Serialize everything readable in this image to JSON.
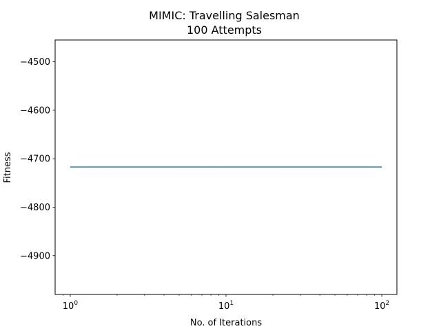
{
  "chart_data": {
    "type": "line",
    "title": "MIMIC: Travelling Salesman",
    "subtitle": "100 Attempts",
    "xlabel": "No. of Iterations",
    "ylabel": "Fitness",
    "xscale": "log",
    "xlim": [
      0.8,
      125
    ],
    "ylim": [
      -4980,
      -4455
    ],
    "xticks": [
      {
        "value": 1,
        "base": "10",
        "exp": "0"
      },
      {
        "value": 10,
        "base": "10",
        "exp": "1"
      },
      {
        "value": 100,
        "base": "10",
        "exp": "2"
      }
    ],
    "yticks": [
      {
        "value": -4500,
        "label": "−4500"
      },
      {
        "value": -4600,
        "label": "−4600"
      },
      {
        "value": -4700,
        "label": "−4700"
      },
      {
        "value": -4800,
        "label": "−4800"
      },
      {
        "value": -4900,
        "label": "−4900"
      }
    ],
    "series": [
      {
        "color": "#1f77b4",
        "x": [
          1,
          2,
          3,
          5,
          10,
          20,
          50,
          100
        ],
        "y": [
          -4717,
          -4717,
          -4717,
          -4717,
          -4717,
          -4717,
          -4717,
          -4717
        ]
      }
    ],
    "grid": false
  }
}
